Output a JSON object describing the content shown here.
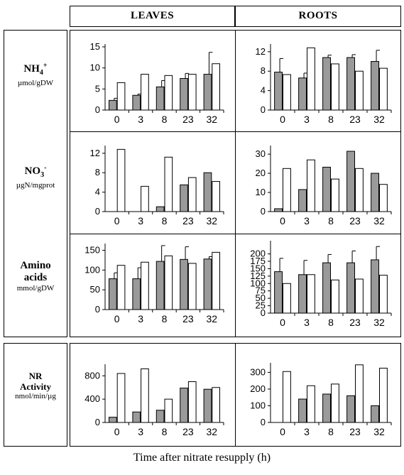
{
  "headers": {
    "leaves": "LEAVES",
    "roots": "ROOTS"
  },
  "rows": [
    {
      "main": "NH",
      "sub": "4",
      "sup": "+",
      "unit": "µmol/gDW"
    },
    {
      "main": "NO",
      "sub": "3",
      "sup": "-",
      "unit": "µgN/mgprot"
    },
    {
      "main1": "Amino",
      "main2": "acids",
      "unit": "mmol/gDW"
    },
    {
      "main1": "NR",
      "main2": "Activity",
      "unit": "nmol/min/µg"
    }
  ],
  "x_title": "Time after nitrate resupply (h)",
  "colors": {
    "shaded": "#9a9a9a",
    "open": "#ffffff",
    "stroke": "#000000"
  },
  "chart_data": [
    {
      "type": "bar",
      "panel": "nh4-leaves",
      "categories": [
        "0",
        "3",
        "8",
        "23",
        "32"
      ],
      "ylim": [
        0,
        15
      ],
      "yticks": [
        0,
        5,
        10,
        15
      ],
      "series": [
        {
          "values": [
            2.3,
            3.5,
            5.5,
            7.5,
            8.5
          ],
          "err": [
            0.5,
            0.3,
            1.5,
            1.2,
            5.2
          ]
        },
        {
          "values": [
            6.5,
            8.5,
            8.2,
            8.5,
            11
          ],
          "err": [
            0,
            0,
            0,
            0,
            0
          ]
        }
      ]
    },
    {
      "type": "bar",
      "panel": "nh4-roots",
      "categories": [
        "0",
        "3",
        "8",
        "23",
        "32"
      ],
      "ylim": [
        0,
        13
      ],
      "yticks": [
        0,
        4,
        8,
        12
      ],
      "series": [
        {
          "values": [
            7.8,
            6.6,
            10.8,
            10.8,
            10
          ],
          "err": [
            2.8,
            1.0,
            0.5,
            0.6,
            2.3
          ]
        },
        {
          "values": [
            7.3,
            12.8,
            9.5,
            8.0,
            8.6
          ],
          "err": [
            0,
            0,
            0,
            0,
            0
          ]
        }
      ]
    },
    {
      "type": "bar",
      "panel": "no3-leaves",
      "categories": [
        "0",
        "3",
        "8",
        "23",
        "32"
      ],
      "ylim": [
        0,
        13
      ],
      "yticks": [
        0,
        4,
        8,
        12
      ],
      "series": [
        {
          "values": [
            0,
            0,
            1,
            5.5,
            8
          ],
          "err": [
            0,
            0,
            0,
            0,
            0
          ]
        },
        {
          "values": [
            12.8,
            5.2,
            11.2,
            7,
            6.2
          ],
          "err": [
            0,
            0,
            0,
            0,
            0
          ]
        }
      ]
    },
    {
      "type": "bar",
      "panel": "no3-roots",
      "categories": [
        "0",
        "3",
        "8",
        "23",
        "32"
      ],
      "ylim": [
        0,
        33
      ],
      "yticks": [
        0,
        10,
        20,
        30
      ],
      "series": [
        {
          "values": [
            1.5,
            11.5,
            23.2,
            31.5,
            20
          ],
          "err": [
            0,
            0,
            0,
            0,
            0
          ]
        },
        {
          "values": [
            22.5,
            27,
            17,
            22.5,
            14.2
          ],
          "err": [
            0,
            0,
            0,
            0,
            0
          ]
        }
      ]
    },
    {
      "type": "bar",
      "panel": "amino-leaves",
      "categories": [
        "0",
        "3",
        "8",
        "23",
        "32"
      ],
      "ylim": [
        0,
        160
      ],
      "yticks": [
        0,
        50,
        100,
        150
      ],
      "series": [
        {
          "values": [
            78,
            78,
            122,
            127,
            128
          ],
          "err": [
            15,
            28,
            40,
            32,
            6
          ]
        },
        {
          "values": [
            112,
            120,
            136,
            117,
            145
          ],
          "err": [
            0,
            0,
            0,
            0,
            0
          ]
        }
      ]
    },
    {
      "type": "bar",
      "panel": "amino-roots",
      "categories": [
        "0",
        "3",
        "8",
        "23",
        "32"
      ],
      "ylim": [
        0,
        235
      ],
      "yticks": [
        0,
        25,
        50,
        75,
        100,
        125,
        150,
        175,
        200
      ],
      "series": [
        {
          "values": [
            140,
            130,
            170,
            170,
            180
          ],
          "err": [
            45,
            48,
            28,
            40,
            45
          ]
        },
        {
          "values": [
            100,
            130,
            112,
            115,
            128
          ],
          "err": [
            0,
            0,
            0,
            0,
            0
          ]
        }
      ]
    },
    {
      "type": "bar",
      "panel": "nr-leaves",
      "categories": [
        "0",
        "3",
        "8",
        "23",
        "32"
      ],
      "ylim": [
        0,
        950
      ],
      "yticks": [
        0,
        400,
        800
      ],
      "series": [
        {
          "values": [
            90,
            180,
            210,
            590,
            570
          ],
          "err": [
            0,
            0,
            0,
            0,
            0
          ]
        },
        {
          "values": [
            840,
            920,
            400,
            700,
            600
          ],
          "err": [
            0,
            0,
            0,
            0,
            0
          ]
        }
      ]
    },
    {
      "type": "bar",
      "panel": "nr-roots",
      "categories": [
        "0",
        "3",
        "8",
        "23",
        "32"
      ],
      "ylim": [
        0,
        340
      ],
      "yticks": [
        0,
        100,
        200,
        300
      ],
      "series": [
        {
          "values": [
            0,
            140,
            170,
            160,
            100
          ],
          "err": [
            0,
            0,
            0,
            0,
            0
          ]
        },
        {
          "values": [
            305,
            220,
            230,
            345,
            325
          ],
          "err": [
            0,
            0,
            0,
            0,
            0
          ]
        }
      ]
    }
  ]
}
